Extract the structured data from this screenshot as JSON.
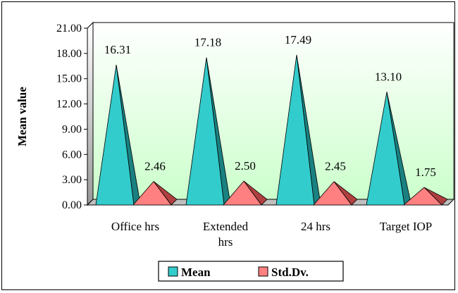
{
  "chart_data": {
    "type": "bar",
    "style": "3d-pyramid",
    "categories": [
      "Office hrs",
      "Extended hrs",
      "24 hrs",
      "Target IOP"
    ],
    "category_lines": [
      [
        "Office hrs"
      ],
      [
        "Extended",
        "hrs"
      ],
      [
        "24 hrs"
      ],
      [
        "Target IOP"
      ]
    ],
    "series": [
      {
        "name": "Mean",
        "values": [
          16.31,
          17.18,
          17.49,
          13.1
        ],
        "labels": [
          "16.31",
          "17.18",
          "17.49",
          "13.10"
        ],
        "color": "#33CCCC",
        "edge": "#1a8080"
      },
      {
        "name": "Std.Dv.",
        "values": [
          2.46,
          2.5,
          2.45,
          1.75
        ],
        "labels": [
          "2.46",
          "2.50",
          "2.45",
          "1.75"
        ],
        "color": "#FF8080",
        "edge": "#b04040"
      }
    ],
    "ylabel": "Mean value",
    "xlabel": "",
    "ylim": [
      0,
      21
    ],
    "yticks": [
      "0.00",
      "3.00",
      "6.00",
      "9.00",
      "12.00",
      "15.00",
      "18.00",
      "21.00"
    ],
    "grid": false,
    "wall_color": "#ccffcc",
    "legend_position": "bottom"
  }
}
